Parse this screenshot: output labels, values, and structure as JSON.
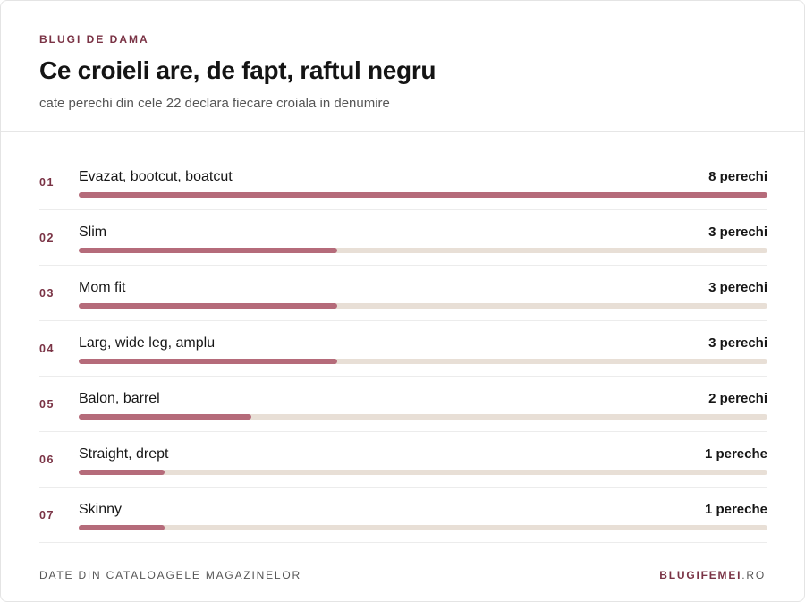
{
  "header": {
    "eyebrow": "BLUGI DE DAMA",
    "title": "Ce croieli are, de fapt, raftul negru",
    "subtitle": "cate perechi din cele 22 declara fiecare croiala in denumire"
  },
  "footer": {
    "source": "DATE DIN CATALOAGELE MAGAZINELOR",
    "brand_name": "BLUGIFEMEI",
    "brand_tld": ".RO"
  },
  "colors": {
    "bar_fill": "#b56b7a",
    "bar_track": "#e8dfd6",
    "accent": "#7a3345"
  },
  "chart_data": {
    "type": "bar",
    "orientation": "horizontal",
    "xlim": [
      0,
      8
    ],
    "categories": [
      "Evazat, bootcut, boatcut",
      "Slim",
      "Mom fit",
      "Larg, wide leg, amplu",
      "Balon, barrel",
      "Straight, drept",
      "Skinny"
    ],
    "ranks": [
      "01",
      "02",
      "03",
      "04",
      "05",
      "06",
      "07"
    ],
    "values": [
      8,
      3,
      3,
      3,
      2,
      1,
      1
    ],
    "value_labels": [
      "8 perechi",
      "3 perechi",
      "3 perechi",
      "3 perechi",
      "2 perechi",
      "1 pereche",
      "1 pereche"
    ]
  }
}
